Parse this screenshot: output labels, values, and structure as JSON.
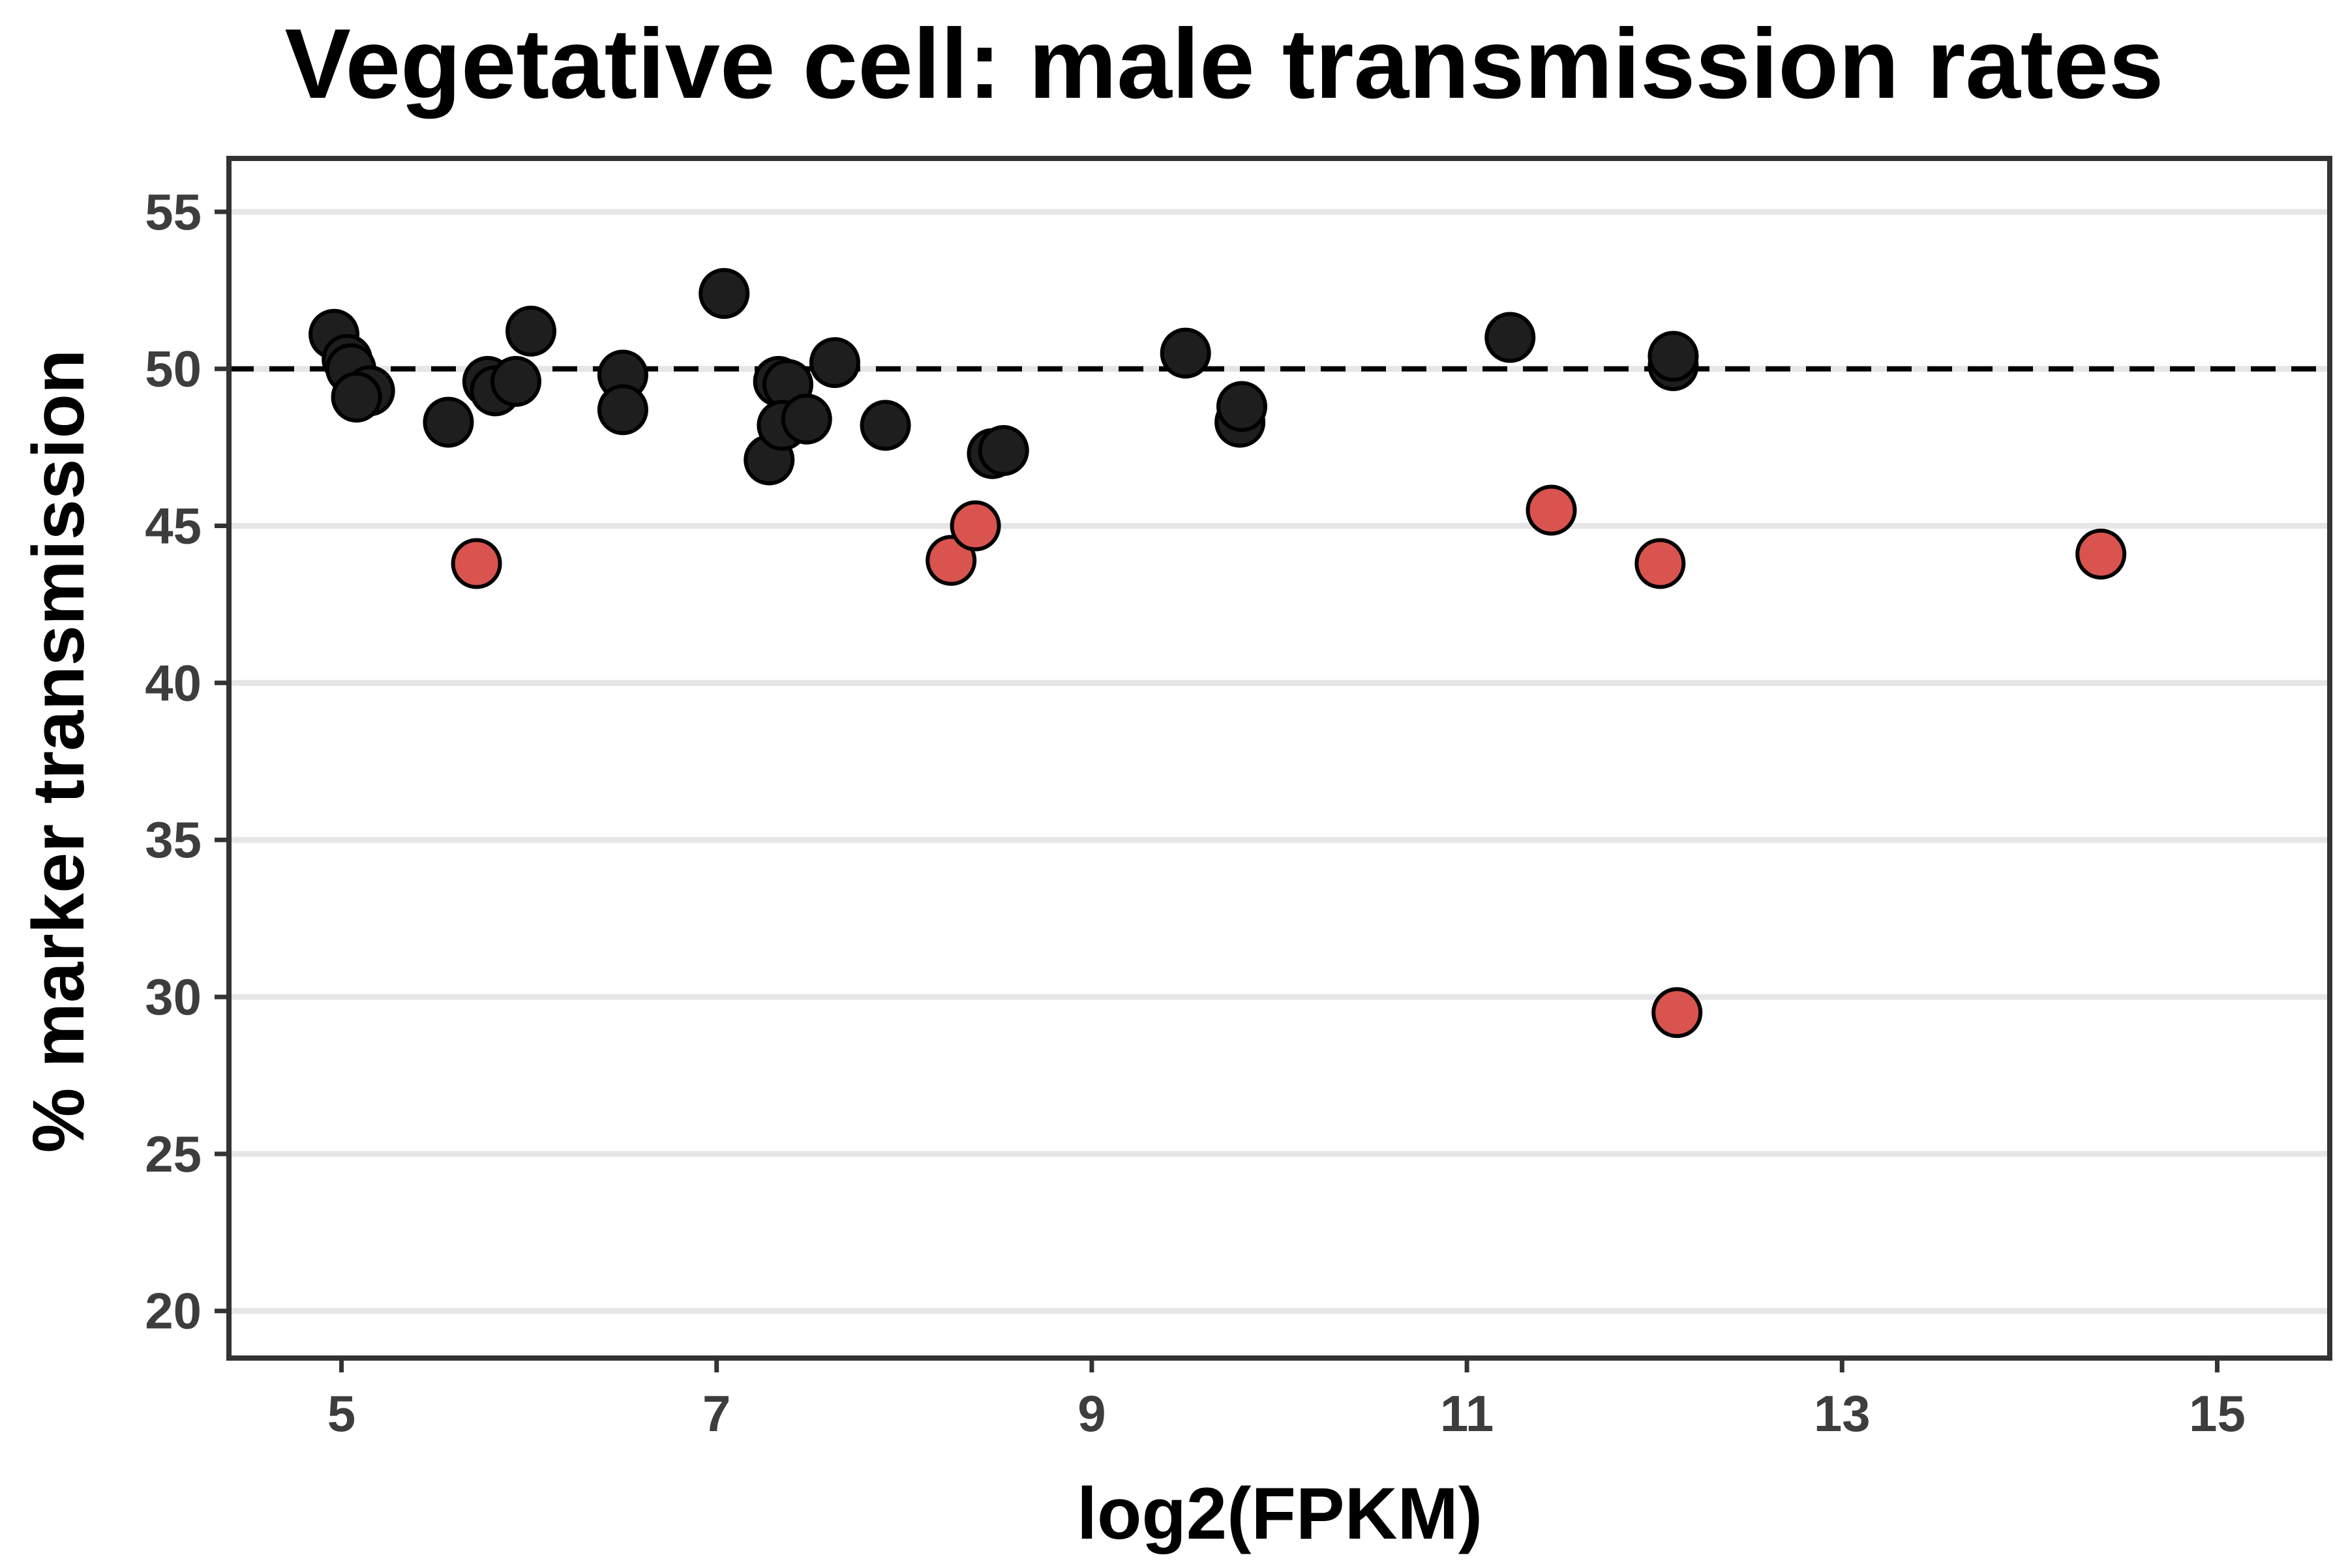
{
  "chart_data": {
    "type": "scatter",
    "title": "Vegetative cell: male transmission rates",
    "xlabel": "log2(FPKM)",
    "ylabel": "% marker transmission",
    "xlim": [
      4.4,
      15.6
    ],
    "ylim": [
      18.5,
      56.7
    ],
    "xticks": [
      "5",
      "7",
      "9",
      "11",
      "13",
      "15"
    ],
    "yticks": [
      "20",
      "25",
      "30",
      "35",
      "40",
      "45",
      "50",
      "55"
    ],
    "grid": "horizontal",
    "reference_line": {
      "y": 50,
      "style": "dashed"
    },
    "colors": {
      "black_points": "#1e1e1e",
      "red_points": "#d9534f",
      "point_outline": "#000000",
      "grid": "#e6e6e6",
      "frame": "#333333"
    },
    "series": [
      {
        "color": "#1e1e1e",
        "points": [
          {
            "x": 4.96,
            "y": 51.1
          },
          {
            "x": 5.03,
            "y": 50.3
          },
          {
            "x": 5.05,
            "y": 50.0
          },
          {
            "x": 5.15,
            "y": 49.3
          },
          {
            "x": 5.08,
            "y": 49.1
          },
          {
            "x": 5.57,
            "y": 48.3
          },
          {
            "x": 5.78,
            "y": 49.6
          },
          {
            "x": 5.82,
            "y": 49.3
          },
          {
            "x": 5.93,
            "y": 49.6
          },
          {
            "x": 6.01,
            "y": 51.2
          },
          {
            "x": 6.5,
            "y": 49.8
          },
          {
            "x": 6.5,
            "y": 48.7
          },
          {
            "x": 7.04,
            "y": 52.4
          },
          {
            "x": 7.28,
            "y": 47.1
          },
          {
            "x": 7.33,
            "y": 49.6
          },
          {
            "x": 7.38,
            "y": 49.5
          },
          {
            "x": 7.35,
            "y": 48.2
          },
          {
            "x": 7.48,
            "y": 48.4
          },
          {
            "x": 7.63,
            "y": 50.2
          },
          {
            "x": 7.9,
            "y": 48.2
          },
          {
            "x": 8.47,
            "y": 47.3
          },
          {
            "x": 8.53,
            "y": 47.4
          },
          {
            "x": 9.5,
            "y": 50.5
          },
          {
            "x": 9.79,
            "y": 48.3
          },
          {
            "x": 9.8,
            "y": 48.8
          },
          {
            "x": 11.23,
            "y": 51.0
          },
          {
            "x": 12.1,
            "y": 50.1
          },
          {
            "x": 12.1,
            "y": 50.4
          }
        ]
      },
      {
        "color": "#d9534f",
        "points": [
          {
            "x": 5.72,
            "y": 43.8
          },
          {
            "x": 8.25,
            "y": 43.9
          },
          {
            "x": 8.38,
            "y": 45.0
          },
          {
            "x": 11.45,
            "y": 45.5
          },
          {
            "x": 12.03,
            "y": 43.8
          },
          {
            "x": 12.12,
            "y": 29.5
          },
          {
            "x": 14.38,
            "y": 44.1
          }
        ]
      }
    ]
  }
}
